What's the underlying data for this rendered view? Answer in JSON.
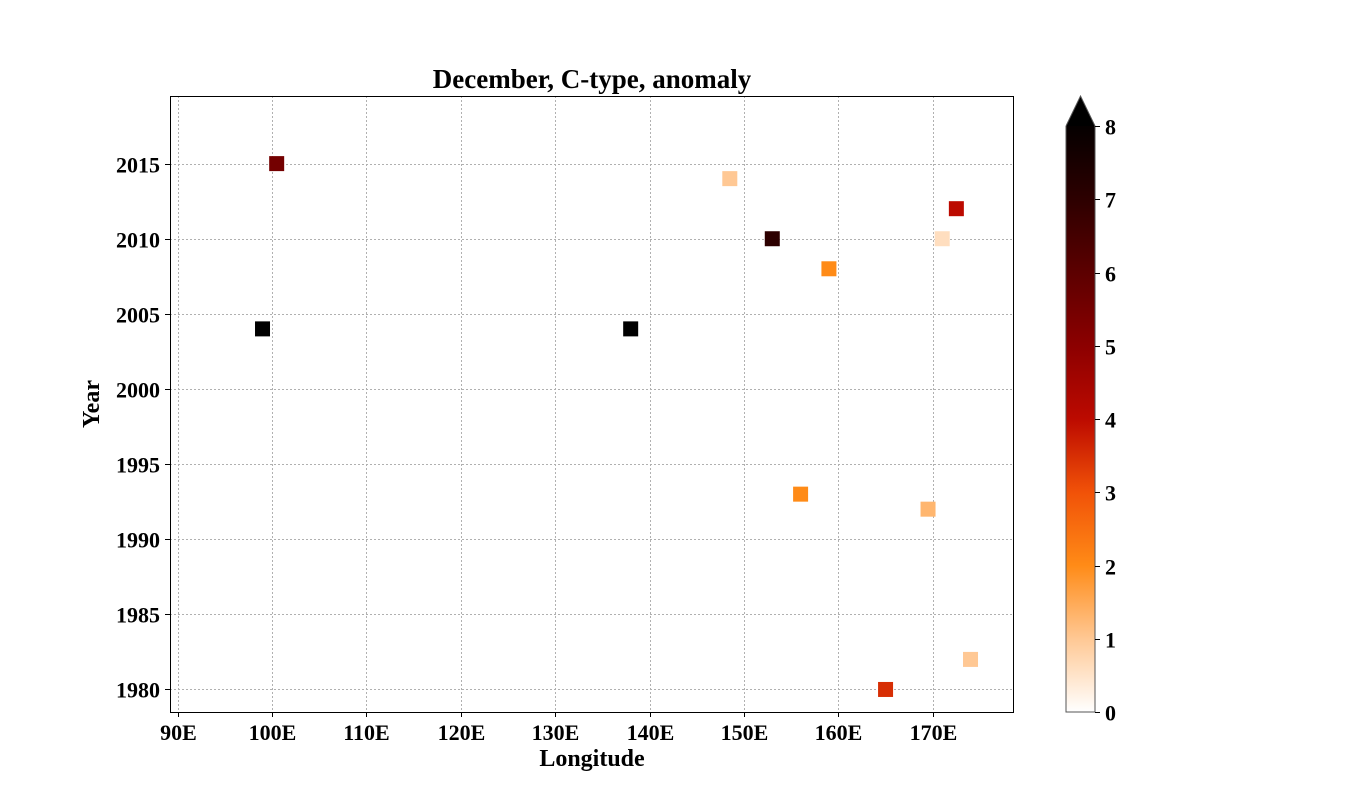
{
  "chart_data": {
    "type": "scatter",
    "title": "December, C-type, anomaly",
    "xlabel": "Longitude",
    "ylabel": "Year",
    "xlim": [
      89.2,
      178.5
    ],
    "ylim": [
      1978.5,
      2019.5
    ],
    "xticks": [
      90,
      100,
      110,
      120,
      130,
      140,
      150,
      160,
      170
    ],
    "xtick_labels": [
      "90E",
      "100E",
      "110E",
      "120E",
      "130E",
      "140E",
      "150E",
      "160E",
      "170E"
    ],
    "yticks": [
      1980,
      1985,
      1990,
      1995,
      2000,
      2005,
      2010,
      2015
    ],
    "ytick_labels": [
      "1980",
      "1985",
      "1990",
      "1995",
      "2000",
      "2005",
      "2010",
      "2015"
    ],
    "grid": true,
    "marker": "square",
    "points": [
      {
        "x": 100.5,
        "y": 2015,
        "value": 5.5
      },
      {
        "x": 99.0,
        "y": 2004,
        "value": 8.5
      },
      {
        "x": 138.0,
        "y": 2004,
        "value": 8.5
      },
      {
        "x": 148.5,
        "y": 2014,
        "value": 1.0
      },
      {
        "x": 153.0,
        "y": 2010,
        "value": 7.0
      },
      {
        "x": 159.0,
        "y": 2008,
        "value": 2.0
      },
      {
        "x": 171.0,
        "y": 2010,
        "value": 0.6
      },
      {
        "x": 172.5,
        "y": 2012,
        "value": 4.0
      },
      {
        "x": 156.0,
        "y": 1993,
        "value": 2.0
      },
      {
        "x": 169.5,
        "y": 1992,
        "value": 1.3
      },
      {
        "x": 174.0,
        "y": 1982,
        "value": 1.0
      },
      {
        "x": 165.0,
        "y": 1980,
        "value": 3.5
      }
    ],
    "colorbar": {
      "colormap": "gist_heat_r",
      "vmin": 0,
      "vmax": 8,
      "extend": "max",
      "ticks": [
        0,
        1,
        2,
        3,
        4,
        5,
        6,
        7,
        8
      ],
      "tick_labels": [
        "0",
        "1",
        "2",
        "3",
        "4",
        "5",
        "6",
        "7",
        "8"
      ],
      "orientation": "vertical",
      "position": "right"
    }
  }
}
